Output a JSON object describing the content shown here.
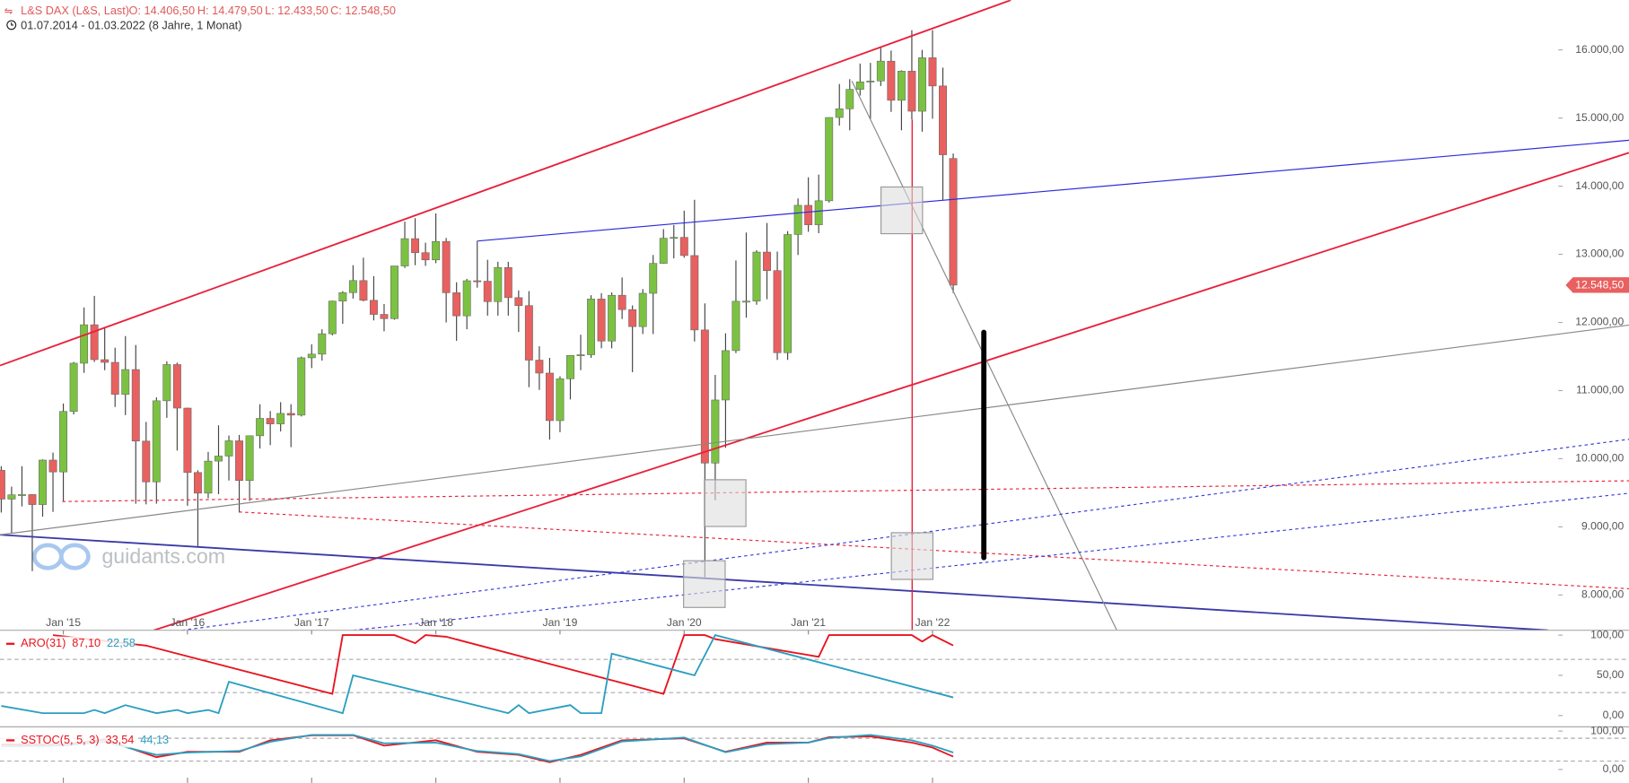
{
  "chart_data": [
    {
      "type": "candlestick",
      "title": "L&S DAX (L&S, Last)",
      "summary": [
        "O: 14.406,50",
        "H: 14.479,50",
        "L: 12.433,50",
        "C: 12.548,50"
      ],
      "period": "01.07.2014 - 01.03.2022",
      "period_note": "(8 Jahre, 1 Monat)",
      "watermark": "guidants.com",
      "x": [
        "2014-07",
        "2014-08",
        "2014-09",
        "2014-10",
        "2014-11",
        "2014-12",
        "2015-01",
        "2015-02",
        "2015-03",
        "2015-04",
        "2015-05",
        "2015-06",
        "2015-07",
        "2015-08",
        "2015-09",
        "2015-10",
        "2015-11",
        "2015-12",
        "2016-01",
        "2016-02",
        "2016-03",
        "2016-04",
        "2016-05",
        "2016-06",
        "2016-07",
        "2016-08",
        "2016-09",
        "2016-10",
        "2016-11",
        "2016-12",
        "2017-01",
        "2017-02",
        "2017-03",
        "2017-04",
        "2017-05",
        "2017-06",
        "2017-07",
        "2017-08",
        "2017-09",
        "2017-10",
        "2017-11",
        "2017-12",
        "2018-01",
        "2018-02",
        "2018-03",
        "2018-04",
        "2018-05",
        "2018-06",
        "2018-07",
        "2018-08",
        "2018-09",
        "2018-10",
        "2018-11",
        "2018-12",
        "2019-01",
        "2019-02",
        "2019-03",
        "2019-04",
        "2019-05",
        "2019-06",
        "2019-07",
        "2019-08",
        "2019-09",
        "2019-10",
        "2019-11",
        "2019-12",
        "2020-01",
        "2020-02",
        "2020-03",
        "2020-04",
        "2020-05",
        "2020-06",
        "2020-07",
        "2020-08",
        "2020-09",
        "2020-10",
        "2020-11",
        "2020-12",
        "2021-01",
        "2021-02",
        "2021-03",
        "2021-04",
        "2021-05",
        "2021-06",
        "2021-07",
        "2021-08",
        "2021-09",
        "2021-10",
        "2021-11",
        "2021-12",
        "2022-01",
        "2022-02",
        "2022-03"
      ],
      "open": [
        9830,
        9407,
        9470,
        9474,
        9327,
        9980,
        9806,
        10694,
        11402,
        11966,
        11454,
        11414,
        10945,
        11309,
        10259,
        9660,
        10850,
        11382,
        10743,
        9798,
        9495,
        9965,
        10039,
        10263,
        9680,
        10337,
        10592,
        10511,
        10665,
        10640,
        11481,
        11535,
        11834,
        12313,
        12438,
        12615,
        12325,
        12118,
        12056,
        12829,
        13230,
        13024,
        12918,
        13189,
        12436,
        12097,
        12612,
        12605,
        12306,
        12806,
        12364,
        12247,
        11447,
        11257,
        10559,
        11173,
        11516,
        11526,
        12344,
        11727,
        12399,
        12189,
        11939,
        12428,
        12867,
        13236,
        13249,
        12982,
        11890,
        9936,
        10862,
        11587,
        12311,
        12313,
        13033,
        12761,
        11556,
        13291,
        13719,
        13433,
        13786,
        15008,
        15136,
        15421,
        15531,
        15544,
        15835,
        15261,
        15688,
        15100,
        15885,
        15471,
        14406.5
      ],
      "high": [
        9890,
        9590,
        9890,
        9480,
        9990,
        10090,
        10810,
        11420,
        12220,
        12390,
        11920,
        11630,
        11800,
        11670,
        10540,
        10900,
        11430,
        11410,
        10750,
        9830,
        10100,
        10490,
        10340,
        10350,
        10340,
        10800,
        10700,
        10830,
        10800,
        11500,
        11680,
        11900,
        12320,
        12460,
        12840,
        12950,
        12680,
        12270,
        12830,
        13480,
        13530,
        13170,
        13600,
        13240,
        12590,
        12640,
        13200,
        12920,
        12890,
        12890,
        12470,
        12460,
        11650,
        11480,
        11210,
        11520,
        11820,
        12400,
        12430,
        12440,
        12660,
        12250,
        12490,
        12990,
        13370,
        13430,
        13640,
        13800,
        12280,
        11230,
        11840,
        12910,
        13320,
        13060,
        13460,
        13040,
        13340,
        13820,
        14130,
        14170,
        15010,
        15500,
        15570,
        15800,
        15810,
        16030,
        15990,
        15700,
        16290,
        16000,
        16290,
        15740,
        14479.5
      ],
      "low": [
        9210,
        8900,
        9300,
        8350,
        9150,
        9220,
        9380,
        10650,
        11260,
        11420,
        11300,
        10760,
        10640,
        9340,
        9330,
        9340,
        10600,
        10120,
        9310,
        8700,
        9420,
        9480,
        9680,
        9210,
        9380,
        10150,
        10200,
        10400,
        10170,
        10620,
        11330,
        11440,
        11810,
        11980,
        12350,
        12310,
        12030,
        11870,
        12040,
        12800,
        12840,
        12830,
        12870,
        12000,
        11730,
        11900,
        12510,
        12100,
        12100,
        12100,
        11860,
        11050,
        11010,
        10280,
        10390,
        10870,
        11300,
        11480,
        11620,
        11620,
        12050,
        11270,
        11830,
        11830,
        12860,
        12940,
        12950,
        11720,
        8260,
        9390,
        10160,
        11550,
        12070,
        12260,
        12340,
        11450,
        11450,
        12990,
        13330,
        13310,
        13760,
        14890,
        14820,
        15330,
        14990,
        15470,
        15090,
        14820,
        14980,
        14800,
        14990,
        13800,
        12433.5
      ],
      "close": [
        9407,
        9470,
        9474,
        9327,
        9980,
        9806,
        10694,
        11402,
        11966,
        11454,
        11414,
        10945,
        11309,
        10259,
        9660,
        10850,
        11382,
        10743,
        9798,
        9495,
        9965,
        10039,
        10263,
        9680,
        10337,
        10592,
        10511,
        10665,
        10640,
        11481,
        11535,
        11834,
        12313,
        12438,
        12615,
        12325,
        12118,
        12056,
        12829,
        13230,
        13024,
        12918,
        13189,
        12436,
        12097,
        12612,
        12605,
        12306,
        12806,
        12364,
        12247,
        11447,
        11257,
        10559,
        11173,
        11516,
        11526,
        12344,
        11727,
        12399,
        12189,
        11939,
        12428,
        12867,
        13236,
        13249,
        12982,
        11890,
        9936,
        10862,
        11587,
        12311,
        12313,
        13033,
        12761,
        11556,
        13291,
        13719,
        13433,
        13786,
        15008,
        15136,
        15421,
        15531,
        15544,
        15835,
        15261,
        15688,
        15100,
        15885,
        15471,
        14461,
        12548.5
      ],
      "up_color": "#7cc242",
      "down_color": "#e8605f",
      "xlim": [
        "2014-07",
        "2027-01"
      ],
      "xticks": [
        {
          "value": "2015-01",
          "label": "Jan '15"
        },
        {
          "value": "2016-01",
          "label": "Jan '16"
        },
        {
          "value": "2017-01",
          "label": "Jan '17"
        },
        {
          "value": "2018-01",
          "label": "Jan '18"
        },
        {
          "value": "2019-01",
          "label": "Jan '19"
        },
        {
          "value": "2020-01",
          "label": "Jan '20"
        },
        {
          "value": "2021-01",
          "label": "Jan '21"
        },
        {
          "value": "2022-01",
          "label": "Jan '22"
        }
      ],
      "ylim": [
        7482,
        16731
      ],
      "yticks": [
        {
          "value": 8000,
          "label": "8.000,00"
        },
        {
          "value": 9000,
          "label": "9.000,00"
        },
        {
          "value": 10000,
          "label": "10.000,00"
        },
        {
          "value": 11000,
          "label": "11.000,00"
        },
        {
          "value": 12000,
          "label": "12.000,00"
        },
        {
          "value": 13000,
          "label": "13.000,00"
        },
        {
          "value": 14000,
          "label": "14.000,00"
        },
        {
          "value": 15000,
          "label": "15.000,00"
        },
        {
          "value": 16000,
          "label": "16.000,00"
        }
      ],
      "last_price": {
        "value": 12548.5,
        "label": "12.548,50"
      }
    },
    {
      "type": "line",
      "title": "ARO(31)",
      "xlim": [
        "2014-07",
        "2027-01"
      ],
      "ylim": [
        -14,
        106
      ],
      "yticks": [
        {
          "value": 100,
          "label": "100,00"
        },
        {
          "value": 50,
          "label": "50,00"
        },
        {
          "value": 0,
          "label": "0,00"
        }
      ],
      "series": [
        {
          "color": "#e8141e",
          "value_label": "87,10",
          "x": [
            "2014-12",
            "2015-09",
            "2017-03",
            "2017-04",
            "2017-09",
            "2017-11",
            "2017-12",
            "2018-02",
            "2019-11",
            "2020-01",
            "2020-03",
            "2020-04",
            "2021-02",
            "2021-03",
            "2021-11",
            "2021-12",
            "2022-01",
            "2022-03"
          ],
          "values": [
            100,
            87,
            27,
            100,
            100,
            90,
            100,
            98,
            27,
            100,
            100,
            95,
            73,
            100,
            100,
            92,
            100,
            87.1
          ]
        },
        {
          "color": "#2a9fc0",
          "value_label": "22,58",
          "x": [
            "2014-07",
            "2014-11",
            "2015-03",
            "2015-04",
            "2015-05",
            "2015-07",
            "2015-10",
            "2015-12",
            "2016-01",
            "2016-03",
            "2016-04",
            "2016-05",
            "2017-04",
            "2017-05",
            "2018-08",
            "2018-09",
            "2018-10",
            "2019-02",
            "2019-03",
            "2019-05",
            "2019-06",
            "2020-02",
            "2020-04",
            "2022-03"
          ],
          "values": [
            12,
            3,
            3,
            7,
            3,
            13,
            3,
            7,
            3,
            7,
            3,
            42,
            3,
            50,
            3,
            13,
            3,
            13,
            3,
            3,
            77,
            50,
            100,
            22.58
          ]
        }
      ]
    },
    {
      "type": "line",
      "title": "SSTOC(5, 5, 3)",
      "xlim": [
        "2014-07",
        "2027-01"
      ],
      "ylim": [
        -35,
        111
      ],
      "yticks": [
        {
          "value": 100,
          "label": "100,00"
        },
        {
          "value": 0,
          "label": "0,00"
        }
      ],
      "series": [
        {
          "color": "#e8141e",
          "value_label": "33,54",
          "x": [
            "2014-07",
            "2015-01",
            "2015-05",
            "2015-10",
            "2016-01",
            "2016-06",
            "2016-09",
            "2017-01",
            "2017-05",
            "2017-08",
            "2018-01",
            "2018-05",
            "2018-09",
            "2018-12",
            "2019-03",
            "2019-07",
            "2020-01",
            "2020-05",
            "2020-09",
            "2021-01",
            "2021-03",
            "2021-07",
            "2021-11",
            "2022-01",
            "2022-03"
          ],
          "values": [
            65,
            65,
            78,
            32,
            46,
            46,
            76,
            89,
            89,
            62,
            76,
            46,
            38,
            19,
            38,
            76,
            81,
            46,
            70,
            70,
            84,
            86,
            70,
            57,
            33.54
          ]
        },
        {
          "color": "#2a9fc0",
          "value_label": "44,13",
          "x": [
            "2014-07",
            "2015-01",
            "2015-05",
            "2015-10",
            "2016-01",
            "2016-06",
            "2016-09",
            "2017-01",
            "2017-05",
            "2017-08",
            "2018-01",
            "2018-05",
            "2018-09",
            "2018-12",
            "2019-03",
            "2019-07",
            "2020-01",
            "2020-05",
            "2020-09",
            "2021-01",
            "2021-03",
            "2021-07",
            "2021-11",
            "2022-01",
            "2022-03"
          ],
          "values": [
            60,
            62,
            72,
            38,
            44,
            48,
            72,
            90,
            90,
            68,
            70,
            48,
            40,
            22,
            34,
            73,
            83,
            45,
            66,
            70,
            82,
            90,
            76,
            62,
            44.13
          ]
        }
      ]
    }
  ]
}
